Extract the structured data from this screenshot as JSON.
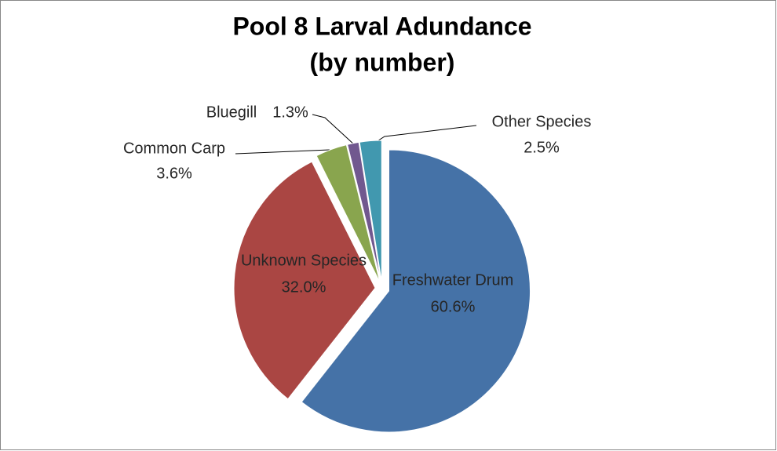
{
  "chart_data": {
    "type": "pie",
    "title": [
      "Pool 8 Larval Adundance",
      "(by number)"
    ],
    "categories": [
      "Freshwater Drum",
      "Unknown Species",
      "Common Carp",
      "Bluegill",
      "Other Species"
    ],
    "values": [
      60.6,
      32.0,
      3.6,
      1.3,
      2.5
    ],
    "value_labels": [
      "60.6%",
      "32.0%",
      "3.6%",
      "1.3%",
      "2.5%"
    ],
    "colors": [
      "#4572a7",
      "#aa4643",
      "#89a54e",
      "#71588f",
      "#4198af"
    ]
  }
}
